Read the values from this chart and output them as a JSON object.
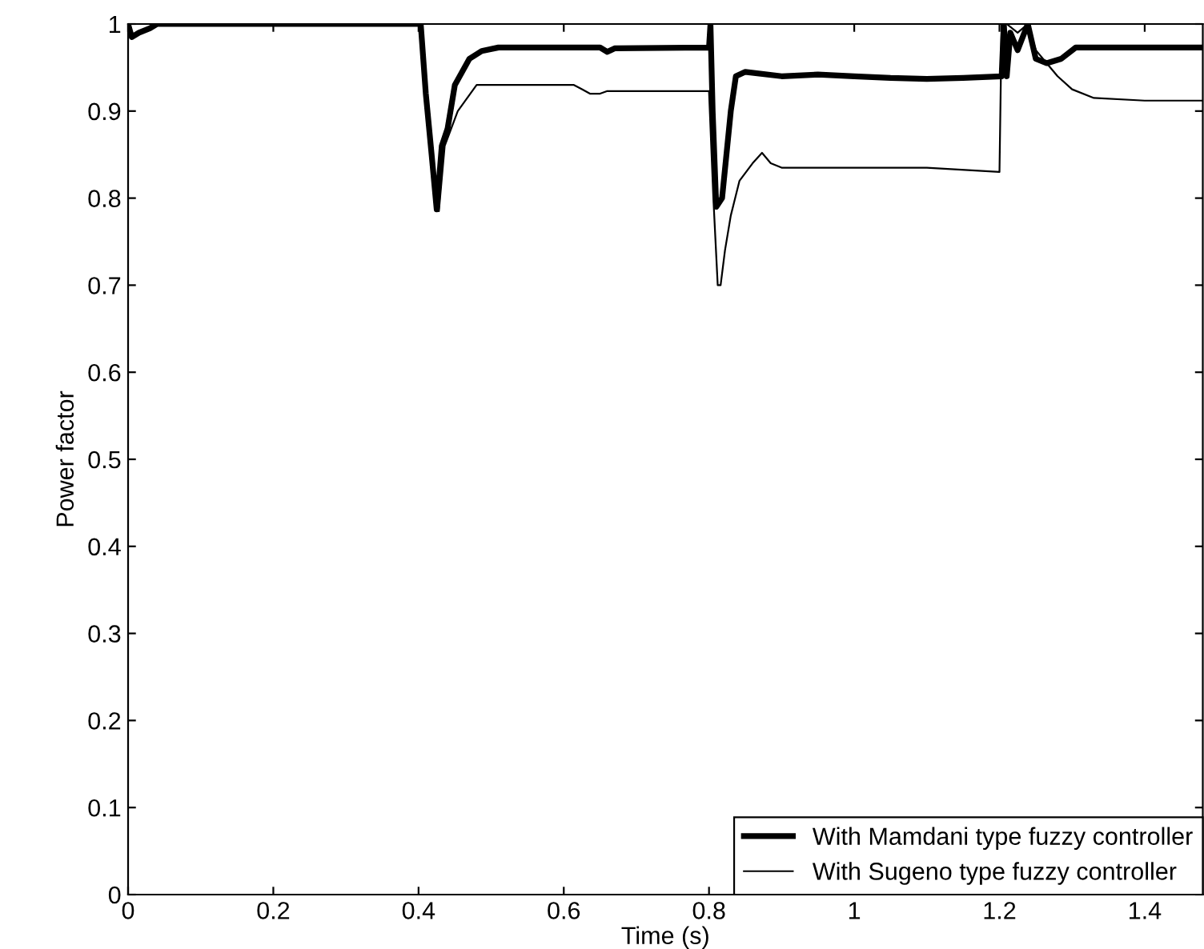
{
  "chart_data": {
    "type": "line",
    "xlabel": "Time (s)",
    "ylabel": "Power factor",
    "xlim": [
      0,
      1.48
    ],
    "ylim": [
      0,
      1
    ],
    "xticks": [
      0,
      0.2,
      0.4,
      0.6,
      0.8,
      1,
      1.2,
      1.4
    ],
    "yticks": [
      0,
      0.1,
      0.2,
      0.3,
      0.4,
      0.5,
      0.6,
      0.7,
      0.8,
      0.9,
      1
    ],
    "grid": false,
    "legend": "bottom right",
    "marker": "none",
    "line_style": "solid",
    "series": [
      {
        "name": "With Mamdani type fuzzy controller",
        "color": "#000000",
        "x": [
          0,
          0.005,
          0.015,
          0.03,
          0.04,
          0.403,
          0.41,
          0.418,
          0.425,
          0.432,
          0.44,
          0.45,
          0.47,
          0.487,
          0.51,
          0.55,
          0.65,
          0.66,
          0.67,
          0.8,
          0.802,
          0.805,
          0.81,
          0.818,
          0.83,
          0.837,
          0.85,
          0.9,
          0.95,
          1.0,
          1.05,
          1.1,
          1.15,
          1.203,
          1.206,
          1.21,
          1.215,
          1.225,
          1.239,
          1.25,
          1.265,
          1.285,
          1.305,
          1.35,
          1.48
        ],
        "values": [
          1.0,
          0.985,
          0.99,
          0.995,
          1.0,
          1.0,
          0.92,
          0.85,
          0.787,
          0.86,
          0.88,
          0.93,
          0.96,
          0.969,
          0.973,
          0.973,
          0.973,
          0.968,
          0.972,
          0.973,
          1.0,
          0.9,
          0.79,
          0.8,
          0.9,
          0.94,
          0.945,
          0.94,
          0.942,
          0.94,
          0.938,
          0.937,
          0.938,
          0.94,
          1.0,
          0.94,
          0.99,
          0.97,
          1.0,
          0.96,
          0.955,
          0.96,
          0.973,
          0.973,
          0.973
        ]
      },
      {
        "name": "With Sugeno type fuzzy controller",
        "color": "#000000",
        "x": [
          0,
          0.005,
          0.015,
          0.03,
          0.04,
          0.403,
          0.41,
          0.418,
          0.428,
          0.436,
          0.445,
          0.454,
          0.48,
          0.614,
          0.625,
          0.636,
          0.65,
          0.66,
          0.8,
          0.806,
          0.812,
          0.816,
          0.822,
          0.83,
          0.842,
          0.86,
          0.873,
          0.885,
          0.9,
          1.0,
          1.1,
          1.2,
          1.203,
          1.21,
          1.225,
          1.239,
          1.25,
          1.265,
          1.28,
          1.3,
          1.33,
          1.4,
          1.48
        ],
        "values": [
          1.0,
          0.985,
          0.99,
          0.995,
          1.0,
          1.0,
          0.92,
          0.85,
          0.785,
          0.86,
          0.88,
          0.9,
          0.93,
          0.93,
          0.925,
          0.92,
          0.92,
          0.923,
          0.923,
          0.8,
          0.7,
          0.7,
          0.74,
          0.78,
          0.82,
          0.84,
          0.852,
          0.84,
          0.835,
          0.835,
          0.835,
          0.83,
          1.0,
          1.0,
          0.99,
          1.0,
          0.97,
          0.955,
          0.94,
          0.925,
          0.915,
          0.912,
          0.912
        ]
      }
    ]
  }
}
